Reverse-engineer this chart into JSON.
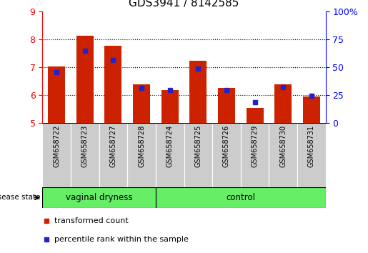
{
  "title": "GDS3941 / 8142585",
  "samples": [
    "GSM658722",
    "GSM658723",
    "GSM658727",
    "GSM658728",
    "GSM658724",
    "GSM658725",
    "GSM658726",
    "GSM658729",
    "GSM658730",
    "GSM658731"
  ],
  "red_bar_tops": [
    7.01,
    8.12,
    7.77,
    6.38,
    6.18,
    7.22,
    6.24,
    5.52,
    6.38,
    5.95
  ],
  "blue_marker_values": [
    6.82,
    7.58,
    7.25,
    6.25,
    6.18,
    6.95,
    6.18,
    5.73,
    6.27,
    5.97
  ],
  "bar_base": 5.0,
  "ylim_left": [
    5,
    9
  ],
  "ylim_right": [
    0,
    100
  ],
  "yticks_left": [
    5,
    6,
    7,
    8,
    9
  ],
  "yticks_right": [
    0,
    25,
    50,
    75,
    100
  ],
  "ytick_labels_right": [
    "0",
    "25",
    "50",
    "75",
    "100%"
  ],
  "group_labels": [
    "vaginal dryness",
    "control"
  ],
  "group_counts": [
    4,
    6
  ],
  "disease_state_label": "disease state",
  "legend_red": "transformed count",
  "legend_blue": "percentile rank within the sample",
  "bar_color": "#cc2200",
  "blue_color": "#2222cc",
  "group_bg_color": "#66ee66",
  "tick_bg_color": "#cccccc",
  "bar_width": 0.6,
  "blue_marker_size": 5,
  "title_fontsize": 11,
  "axis_fontsize": 9,
  "label_fontsize": 8
}
